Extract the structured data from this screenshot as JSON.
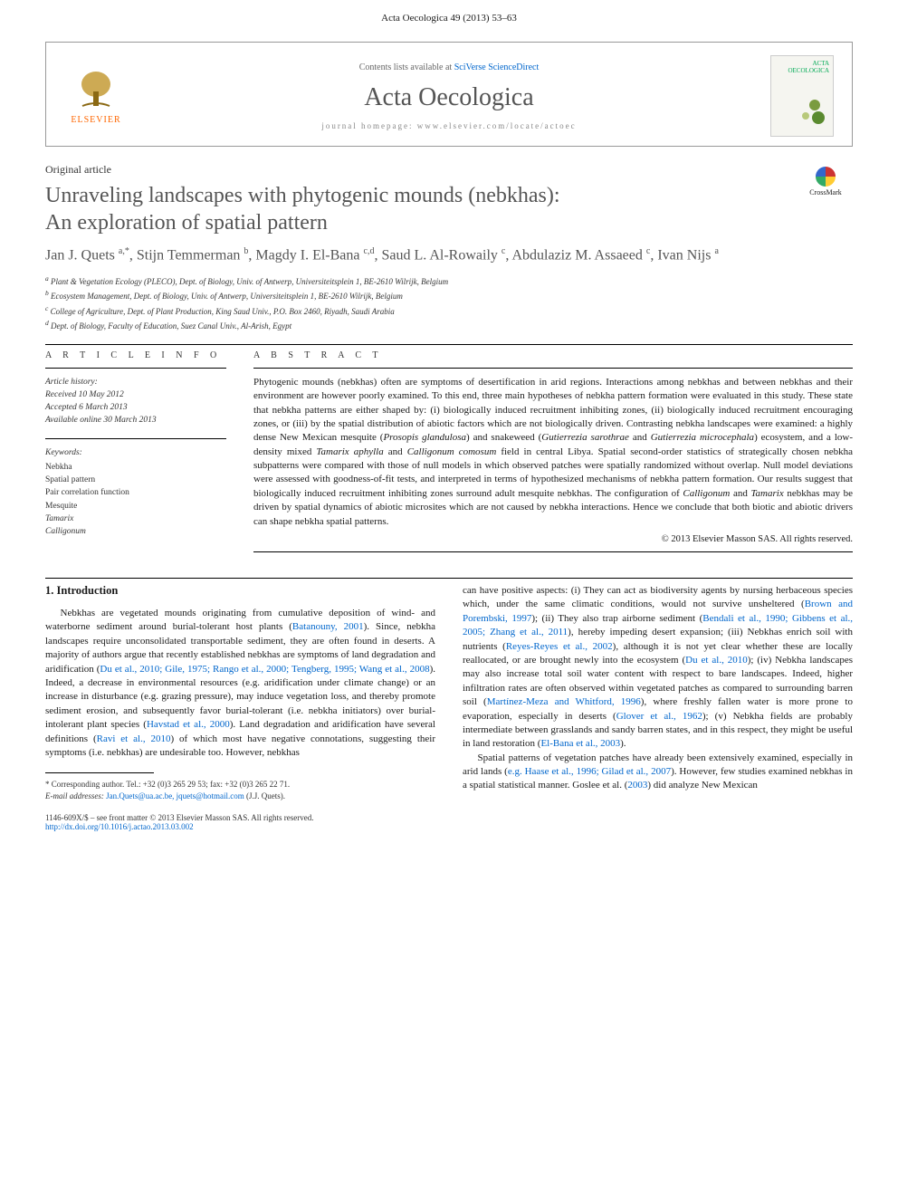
{
  "running_head": "Acta Oecologica 49 (2013) 53–63",
  "header": {
    "contents_prefix": "Contents lists available at ",
    "contents_link": "SciVerse ScienceDirect",
    "journal": "Acta Oecologica",
    "homepage_prefix": "journal homepage: ",
    "homepage_url": "www.elsevier.com/locate/actoec",
    "publisher": "ELSEVIER",
    "cover_label": "ACTA OECOLOGICA"
  },
  "crossmark": "CrossMark",
  "article_type": "Original article",
  "title_line1": "Unraveling landscapes with phytogenic mounds (nebkhas):",
  "title_line2": "An exploration of spatial pattern",
  "authors_html": "Jan J. Quets <sup>a,*</sup>, Stijn Temmerman <sup>b</sup>, Magdy I. El-Bana <sup>c,d</sup>, Saud L. Al-Rowaily <sup>c</sup>, Abdulaziz M. Assaeed <sup>c</sup>, Ivan Nijs <sup>a</sup>",
  "affiliations": [
    "a Plant & Vegetation Ecology (PLECO), Dept. of Biology, Univ. of Antwerp, Universiteitsplein 1, BE-2610 Wilrijk, Belgium",
    "b Ecosystem Management, Dept. of Biology, Univ. of Antwerp, Universiteitsplein 1, BE-2610 Wilrijk, Belgium",
    "c College of Agriculture, Dept. of Plant Production, King Saud Univ., P.O. Box 2460, Riyadh, Saudi Arabia",
    "d Dept. of Biology, Faculty of Education, Suez Canal Univ., Al-Arish, Egypt"
  ],
  "info_label": "A R T I C L E   I N F O",
  "abstract_label": "A B S T R A C T",
  "history_label": "Article history:",
  "history": [
    "Received 10 May 2012",
    "Accepted 6 March 2013",
    "Available online 30 March 2013"
  ],
  "keywords_label": "Keywords:",
  "keywords": [
    {
      "t": "Nebkha",
      "italic": false
    },
    {
      "t": "Spatial pattern",
      "italic": false
    },
    {
      "t": "Pair correlation function",
      "italic": false
    },
    {
      "t": "Mesquite",
      "italic": false
    },
    {
      "t": "Tamarix",
      "italic": true
    },
    {
      "t": "Calligonum",
      "italic": true
    }
  ],
  "abstract": "Phytogenic mounds (nebkhas) often are symptoms of desertification in arid regions. Interactions among nebkhas and between nebkhas and their environment are however poorly examined. To this end, three main hypotheses of nebkha pattern formation were evaluated in this study. These state that nebkha patterns are either shaped by: (i) biologically induced recruitment inhibiting zones, (ii) biologically induced recruitment encouraging zones, or (iii) by the spatial distribution of abiotic factors which are not biologically driven. Contrasting nebkha landscapes were examined: a highly dense New Mexican mesquite (Prosopis glandulosa) and snakeweed (Gutierrezia sarothrae and Gutierrezia microcephala) ecosystem, and a low-density mixed Tamarix aphylla and Calligonum comosum field in central Libya. Spatial second-order statistics of strategically chosen nebkha subpatterns were compared with those of null models in which observed patches were spatially randomized without overlap. Null model deviations were assessed with goodness-of-fit tests, and interpreted in terms of hypothesized mechanisms of nebkha pattern formation. Our results suggest that biologically induced recruitment inhibiting zones surround adult mesquite nebkhas. The configuration of Calligonum and Tamarix nebkhas may be driven by spatial dynamics of abiotic microsites which are not caused by nebkha interactions. Hence we conclude that both biotic and abiotic drivers can shape nebkha spatial patterns.",
  "copyright": "© 2013 Elsevier Masson SAS. All rights reserved.",
  "introduction_heading": "1. Introduction",
  "intro_col1": "Nebkhas are vegetated mounds originating from cumulative deposition of wind- and waterborne sediment around burial-tolerant host plants (Batanouny, 2001). Since, nebkha landscapes require unconsolidated transportable sediment, they are often found in deserts. A majority of authors argue that recently established nebkhas are symptoms of land degradation and aridification (Du et al., 2010; Gile, 1975; Rango et al., 2000; Tengberg, 1995; Wang et al., 2008). Indeed, a decrease in environmental resources (e.g. aridification under climate change) or an increase in disturbance (e.g. grazing pressure), may induce vegetation loss, and thereby promote sediment erosion, and subsequently favor burial-tolerant (i.e. nebkha initiators) over burial-intolerant plant species (Havstad et al., 2000). Land degradation and aridification have several definitions (Ravi et al., 2010) of which most have negative connotations, suggesting their symptoms (i.e. nebkhas) are undesirable too. However, nebkhas",
  "intro_col2_p1": "can have positive aspects: (i) They can act as biodiversity agents by nursing herbaceous species which, under the same climatic conditions, would not survive unsheltered (Brown and Porembski, 1997); (ii) They also trap airborne sediment (Bendali et al., 1990; Gibbens et al., 2005; Zhang et al., 2011), hereby impeding desert expansion; (iii) Nebkhas enrich soil with nutrients (Reyes-Reyes et al., 2002), although it is not yet clear whether these are locally reallocated, or are brought newly into the ecosystem (Du et al., 2010); (iv) Nebkha landscapes may also increase total soil water content with respect to bare landscapes. Indeed, higher infiltration rates are often observed within vegetated patches as compared to surrounding barren soil (Martínez-Meza and Whitford, 1996), where freshly fallen water is more prone to evaporation, especially in deserts (Glover et al., 1962); (v) Nebkha fields are probably intermediate between grasslands and sandy barren states, and in this respect, they might be useful in land restoration (El-Bana et al., 2003).",
  "intro_col2_p2": "Spatial patterns of vegetation patches have already been extensively examined, especially in arid lands (e.g. Haase et al., 1996; Gilad et al., 2007). However, few studies examined nebkhas in a spatial statistical manner. Goslee et al. (2003) did analyze New Mexican",
  "corresponding": "* Corresponding author. Tel.: +32 (0)3 265 29 53; fax: +32 (0)3 265 22 71.",
  "email_label": "E-mail addresses: ",
  "emails": "Jan.Quets@ua.ac.be, jquets@hotmail.com",
  "email_suffix": " (J.J. Quets).",
  "footer_issn": "1146-609X/$ – see front matter © 2013 Elsevier Masson SAS. All rights reserved.",
  "footer_doi": "http://dx.doi.org/10.1016/j.actao.2013.03.002",
  "colors": {
    "link": "#0066cc",
    "publisher_orange": "#ff6600",
    "heading_grey": "#555555",
    "text": "#1a1a1a"
  }
}
